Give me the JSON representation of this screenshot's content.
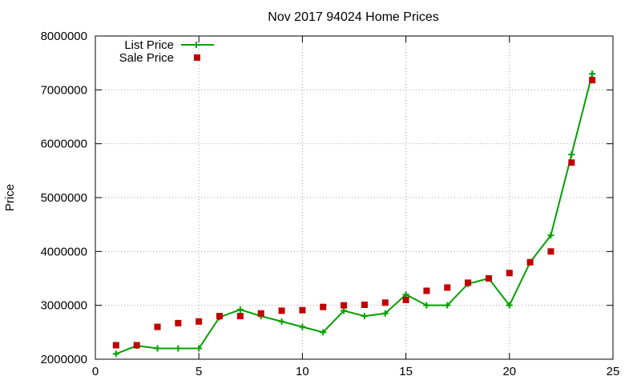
{
  "chart_data": {
    "type": "line",
    "title": "Nov 2017 94024 Home Prices",
    "xlabel": "",
    "ylabel": "Price",
    "xlim": [
      0,
      25
    ],
    "ylim": [
      2000000,
      8000000
    ],
    "xticks": [
      0,
      5,
      10,
      15,
      20,
      25
    ],
    "yticks": [
      2000000,
      3000000,
      4000000,
      5000000,
      6000000,
      7000000,
      8000000
    ],
    "grid": true,
    "legend_position": "top-left",
    "series": [
      {
        "name": "List Price",
        "style": "line+cross",
        "color": "#00a000",
        "x": [
          1,
          2,
          3,
          4,
          5,
          6,
          7,
          8,
          9,
          10,
          11,
          12,
          13,
          14,
          15,
          16,
          17,
          18,
          19,
          20,
          21,
          22,
          23,
          24
        ],
        "y": [
          2100000,
          2250000,
          2200000,
          2200000,
          2200000,
          2780000,
          2920000,
          2800000,
          2700000,
          2600000,
          2500000,
          2900000,
          2800000,
          2850000,
          3200000,
          3000000,
          3000000,
          3400000,
          3500000,
          3000000,
          3800000,
          4300000,
          5800000,
          7300000
        ]
      },
      {
        "name": "Sale Price",
        "style": "square",
        "color": "#c00000",
        "x": [
          1,
          2,
          3,
          4,
          5,
          6,
          7,
          8,
          9,
          10,
          11,
          12,
          13,
          14,
          15,
          16,
          17,
          18,
          19,
          20,
          21,
          22,
          23,
          24
        ],
        "y": [
          2260000,
          2260000,
          2600000,
          2670000,
          2700000,
          2800000,
          2800000,
          2850000,
          2900000,
          2910000,
          2970000,
          3000000,
          3010000,
          3050000,
          3100000,
          3270000,
          3330000,
          3420000,
          3500000,
          3600000,
          3800000,
          4000000,
          5650000,
          7180000
        ]
      }
    ]
  }
}
